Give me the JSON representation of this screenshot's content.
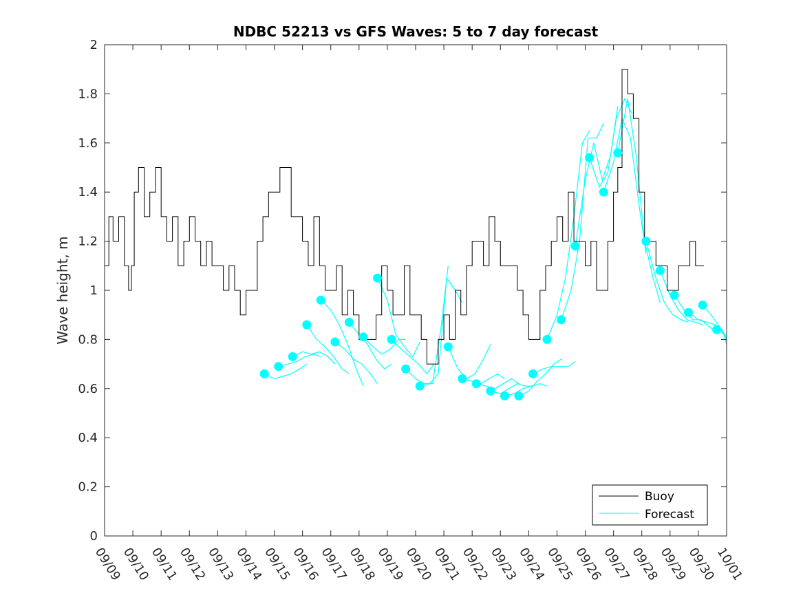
{
  "chart_data": {
    "type": "line",
    "title": "NDBC 52213 vs GFS Waves: 5 to 7 day forecast",
    "xlabel": "",
    "ylabel": "Wave height, m",
    "xlim": [
      0,
      22
    ],
    "ylim": [
      0,
      2
    ],
    "yticks": [
      0,
      0.2,
      0.4,
      0.6,
      0.8,
      1,
      1.2,
      1.4,
      1.6,
      1.8,
      2
    ],
    "ytick_labels": [
      "0",
      "0.2",
      "0.4",
      "0.6",
      "0.8",
      "1",
      "1.2",
      "1.4",
      "1.6",
      "1.8",
      "2"
    ],
    "xtick_labels": [
      "09/09",
      "09/10",
      "09/11",
      "09/12",
      "09/13",
      "09/14",
      "09/15",
      "09/16",
      "09/17",
      "09/18",
      "09/19",
      "09/20",
      "09/21",
      "09/22",
      "09/23",
      "09/24",
      "09/25",
      "09/26",
      "09/27",
      "09/28",
      "09/29",
      "09/30",
      "10/01"
    ],
    "legend": {
      "position": "bottom-right",
      "entries": [
        "Buoy",
        "Forecast"
      ]
    },
    "colors": {
      "buoy": "#000000",
      "forecast": "#00ffff"
    },
    "series": [
      {
        "name": "Buoy",
        "x": [
          0,
          0.15,
          0.3,
          0.5,
          0.7,
          0.85,
          0.95,
          1.05,
          1.2,
          1.4,
          1.6,
          1.8,
          2.0,
          2.2,
          2.4,
          2.6,
          2.8,
          3.0,
          3.2,
          3.4,
          3.6,
          3.8,
          4.0,
          4.2,
          4.4,
          4.6,
          4.8,
          5.0,
          5.2,
          5.4,
          5.6,
          5.8,
          6.0,
          6.2,
          6.4,
          6.6,
          6.8,
          7.0,
          7.2,
          7.4,
          7.6,
          7.8,
          8.0,
          8.2,
          8.4,
          8.6,
          8.8,
          9.0,
          9.2,
          9.4,
          9.6,
          9.8,
          10.0,
          10.2,
          10.4,
          10.6,
          10.8,
          11.0,
          11.2,
          11.4,
          11.6,
          11.8,
          12.0,
          12.2,
          12.4,
          12.6,
          12.8,
          13.0,
          13.2,
          13.4,
          13.6,
          13.8,
          14.0,
          14.2,
          14.4,
          14.6,
          14.8,
          15.0,
          15.2,
          15.4,
          15.6,
          15.8,
          16.0,
          16.2,
          16.4,
          16.6,
          16.8,
          17.0,
          17.2,
          17.4,
          17.6,
          17.8,
          18.0,
          18.15,
          18.3,
          18.5,
          18.7,
          18.9,
          19.1,
          19.3,
          19.5,
          19.7,
          19.9,
          20.1,
          20.3,
          20.5,
          20.7,
          20.9,
          21.1,
          21.2
        ],
        "values": [
          1.1,
          1.3,
          1.2,
          1.3,
          1.1,
          1.0,
          1.1,
          1.4,
          1.5,
          1.3,
          1.4,
          1.5,
          1.3,
          1.2,
          1.3,
          1.1,
          1.2,
          1.3,
          1.2,
          1.1,
          1.2,
          1.1,
          1.1,
          1.0,
          1.1,
          1.0,
          0.9,
          1.0,
          1.0,
          1.2,
          1.3,
          1.4,
          1.4,
          1.5,
          1.5,
          1.3,
          1.3,
          1.2,
          1.1,
          1.3,
          1.1,
          1.0,
          1.0,
          1.1,
          0.9,
          1.0,
          0.9,
          0.8,
          0.8,
          0.8,
          0.9,
          1.1,
          1.0,
          0.9,
          0.9,
          1.1,
          0.9,
          0.9,
          0.8,
          0.7,
          0.7,
          0.8,
          0.9,
          0.8,
          1.0,
          0.9,
          1.1,
          1.2,
          1.2,
          1.1,
          1.3,
          1.2,
          1.1,
          1.1,
          1.1,
          1.0,
          0.9,
          0.8,
          0.8,
          1.0,
          1.1,
          1.2,
          1.3,
          1.2,
          1.4,
          1.2,
          1.2,
          1.1,
          1.2,
          1.0,
          1.0,
          1.2,
          1.4,
          1.5,
          1.9,
          1.8,
          1.7,
          1.4,
          1.2,
          1.2,
          1.1,
          1.1,
          1.0,
          1.0,
          1.1,
          1.1,
          1.2,
          1.1,
          1.1,
          1.1
        ]
      }
    ],
    "forecast_runs": [
      {
        "x": [
          5.65,
          6.0,
          6.3,
          6.6,
          6.9,
          7.15
        ],
        "values": [
          0.66,
          0.64,
          0.65,
          0.66,
          0.68,
          0.7
        ]
      },
      {
        "x": [
          6.15,
          6.5,
          6.8,
          7.1,
          7.4,
          7.65
        ],
        "values": [
          0.69,
          0.7,
          0.71,
          0.73,
          0.74,
          0.73
        ]
      },
      {
        "x": [
          6.65,
          7.0,
          7.3,
          7.6,
          7.9,
          8.15
        ],
        "values": [
          0.73,
          0.75,
          0.74,
          0.75,
          0.73,
          0.7
        ]
      },
      {
        "x": [
          7.15,
          7.5,
          7.8,
          8.1,
          8.4,
          8.65
        ],
        "values": [
          0.86,
          0.8,
          0.77,
          0.73,
          0.68,
          0.66
        ]
      },
      {
        "x": [
          7.65,
          8.0,
          8.3,
          8.6,
          8.9,
          9.15
        ],
        "values": [
          0.96,
          0.92,
          0.86,
          0.78,
          0.68,
          0.61
        ]
      },
      {
        "x": [
          8.15,
          8.5,
          8.8,
          9.1,
          9.4,
          9.65
        ],
        "values": [
          0.79,
          0.76,
          0.72,
          0.7,
          0.66,
          0.62
        ]
      },
      {
        "x": [
          8.65,
          9.0,
          9.3,
          9.6,
          9.9,
          10.15
        ],
        "values": [
          0.87,
          0.82,
          0.78,
          0.72,
          0.68,
          0.7
        ]
      },
      {
        "x": [
          9.15,
          9.5,
          9.8,
          10.1,
          10.4,
          10.65
        ],
        "values": [
          0.81,
          0.77,
          0.74,
          0.76,
          0.8,
          0.8
        ]
      },
      {
        "x": [
          9.65,
          10.0,
          10.3,
          10.6,
          10.9,
          11.15
        ],
        "values": [
          1.05,
          0.96,
          0.82,
          0.77,
          0.73,
          0.79
        ]
      },
      {
        "x": [
          10.15,
          10.5,
          10.8,
          11.1,
          11.4,
          11.65
        ],
        "values": [
          0.8,
          0.76,
          0.73,
          0.7,
          0.66,
          0.7
        ]
      },
      {
        "x": [
          10.65,
          11.0,
          11.3,
          11.6,
          11.9,
          12.15
        ],
        "values": [
          0.68,
          0.64,
          0.62,
          0.62,
          0.85,
          1.1
        ]
      },
      {
        "x": [
          11.15,
          11.5,
          11.8,
          12.1,
          12.4,
          12.65
        ],
        "values": [
          0.61,
          0.62,
          0.66,
          1.05,
          1.0,
          0.95
        ]
      },
      {
        "x": [
          12.15,
          12.5,
          12.8,
          13.1,
          13.4,
          13.65
        ],
        "values": [
          0.77,
          0.68,
          0.64,
          0.66,
          0.72,
          0.78
        ]
      },
      {
        "x": [
          12.65,
          13.0,
          13.3,
          13.6,
          13.9,
          14.15
        ],
        "values": [
          0.64,
          0.63,
          0.62,
          0.64,
          0.66,
          0.64
        ]
      },
      {
        "x": [
          13.15,
          13.5,
          13.8,
          14.1,
          14.4,
          14.65
        ],
        "values": [
          0.62,
          0.61,
          0.6,
          0.62,
          0.64,
          0.62
        ]
      },
      {
        "x": [
          13.65,
          14.0,
          14.3,
          14.6,
          14.9,
          15.15
        ],
        "values": [
          0.59,
          0.58,
          0.6,
          0.62,
          0.61,
          0.61
        ]
      },
      {
        "x": [
          14.15,
          14.5,
          14.8,
          15.1,
          15.4,
          15.65
        ],
        "values": [
          0.57,
          0.58,
          0.6,
          0.61,
          0.62,
          0.61
        ]
      },
      {
        "x": [
          14.65,
          15.0,
          15.3,
          15.6,
          15.9,
          16.15
        ],
        "values": [
          0.57,
          0.59,
          0.63,
          0.66,
          0.7,
          0.72
        ]
      },
      {
        "x": [
          15.15,
          15.5,
          15.8,
          16.1,
          16.4,
          16.65
        ],
        "values": [
          0.66,
          0.68,
          0.69,
          0.69,
          0.69,
          0.71
        ]
      },
      {
        "x": [
          15.65,
          16.0,
          16.3,
          16.6,
          16.9,
          17.15
        ],
        "values": [
          0.8,
          0.9,
          1.05,
          1.3,
          1.6,
          1.65
        ]
      },
      {
        "x": [
          16.15,
          16.5,
          16.8,
          17.1,
          17.4,
          17.65
        ],
        "values": [
          0.88,
          1.0,
          1.2,
          1.62,
          1.62,
          1.68
        ]
      },
      {
        "x": [
          16.65,
          17.0,
          17.3,
          17.6,
          17.9,
          18.15
        ],
        "values": [
          1.18,
          1.45,
          1.6,
          1.45,
          1.55,
          1.75
        ]
      },
      {
        "x": [
          17.15,
          17.5,
          17.8,
          18.1,
          18.4,
          18.65
        ],
        "values": [
          1.54,
          1.42,
          1.48,
          1.7,
          1.78,
          1.72
        ]
      },
      {
        "x": [
          17.65,
          18.0,
          18.3,
          18.6,
          18.9,
          19.15
        ],
        "values": [
          1.4,
          1.52,
          1.7,
          1.62,
          1.35,
          1.15
        ]
      },
      {
        "x": [
          18.15,
          18.5,
          18.8,
          19.1,
          19.4,
          19.65
        ],
        "values": [
          1.56,
          1.78,
          1.55,
          1.2,
          1.05,
          0.95
        ]
      },
      {
        "x": [
          19.15,
          19.5,
          19.8,
          20.1,
          20.4,
          20.65
        ],
        "values": [
          1.2,
          1.05,
          0.95,
          0.9,
          0.88,
          0.87
        ]
      },
      {
        "x": [
          19.65,
          20.0,
          20.3,
          20.6,
          20.9,
          21.15
        ],
        "values": [
          1.08,
          0.98,
          0.92,
          0.88,
          0.87,
          0.86
        ]
      },
      {
        "x": [
          20.15,
          20.5,
          20.8,
          21.1,
          21.4,
          21.65
        ],
        "values": [
          0.98,
          0.92,
          0.88,
          0.88,
          0.85,
          0.83
        ]
      },
      {
        "x": [
          20.65,
          21.0,
          21.3,
          21.6,
          21.85,
          22.0
        ],
        "values": [
          0.91,
          0.88,
          0.87,
          0.86,
          0.84,
          0.8
        ]
      },
      {
        "x": [
          21.15,
          21.45,
          21.7,
          21.9,
          22.0
        ],
        "values": [
          0.94,
          0.9,
          0.86,
          0.82,
          0.78
        ]
      },
      {
        "x": [
          21.65,
          21.8,
          21.95,
          22.0
        ],
        "values": [
          0.84,
          0.83,
          0.82,
          0.8
        ]
      }
    ]
  }
}
